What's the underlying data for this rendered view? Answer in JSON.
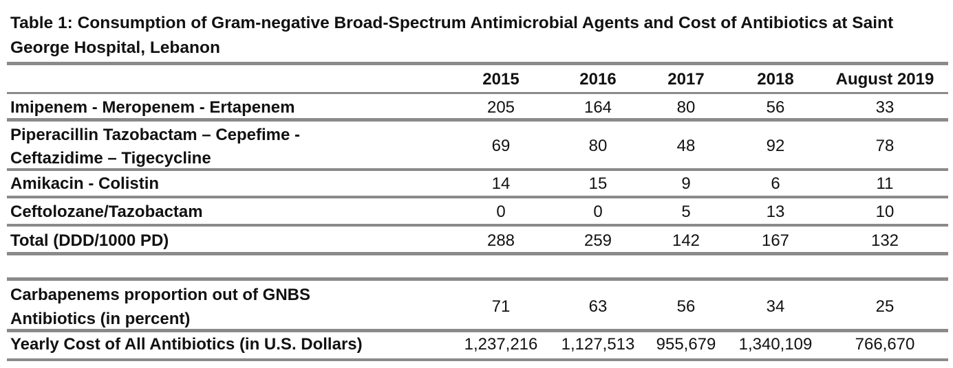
{
  "table": {
    "title": "Table 1: Consumption of Gram-negative Broad-Spectrum Antimicrobial Agents and Cost of Antibiotics at Saint George Hospital, Lebanon",
    "columns": [
      "2015",
      "2016",
      "2017",
      "2018",
      "August 2019"
    ],
    "rows": [
      {
        "label": [
          "Imipenem - Meropenem - Ertapenem"
        ],
        "values": [
          "205",
          "164",
          "80",
          "56",
          "33"
        ]
      },
      {
        "label": [
          "Piperacillin Tazobactam – Cepefime -",
          "Ceftazidime – Tigecycline"
        ],
        "values": [
          "69",
          "80",
          "48",
          "92",
          "78"
        ]
      },
      {
        "label": [
          "Amikacin - Colistin"
        ],
        "values": [
          "14",
          "15",
          "9",
          "6",
          "11"
        ]
      },
      {
        "label": [
          "Ceftolozane/Tazobactam"
        ],
        "values": [
          "0",
          "0",
          "5",
          "13",
          "10"
        ]
      },
      {
        "label": [
          "Total (DDD/1000 PD)"
        ],
        "values": [
          "288",
          "259",
          "142",
          "167",
          "132"
        ]
      },
      {
        "label": [
          "Carbapenems proportion out of GNBS",
          "Antibiotics (in percent)"
        ],
        "values": [
          "71",
          "63",
          "56",
          "34",
          "25"
        ]
      },
      {
        "label": [
          "Yearly Cost of All Antibiotics (in U.S. Dollars)"
        ],
        "values": [
          "1,237,216",
          "1,127,513",
          "955,679",
          "1,340,109",
          "766,670"
        ]
      }
    ]
  }
}
